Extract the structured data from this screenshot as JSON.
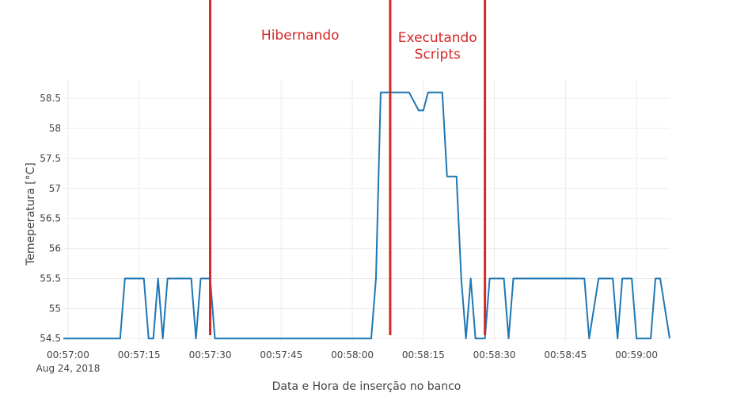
{
  "chart_data": {
    "type": "line",
    "title": "",
    "xlabel": "Data e Hora de inserção no banco",
    "ylabel": "Temeperatura [°C]",
    "xlim": [
      "00:56:59",
      "00:59:07"
    ],
    "ylim": [
      54.45,
      58.82
    ],
    "grid": true,
    "x_ticks": [
      {
        "t": "00:57:00",
        "label": "00:57:00",
        "sublabel": "Aug 24, 2018"
      },
      {
        "t": "00:57:15",
        "label": "00:57:15"
      },
      {
        "t": "00:57:30",
        "label": "00:57:30"
      },
      {
        "t": "00:57:45",
        "label": "00:57:45"
      },
      {
        "t": "00:58:00",
        "label": "00:58:00"
      },
      {
        "t": "00:58:15",
        "label": "00:58:15"
      },
      {
        "t": "00:58:30",
        "label": "00:58:30"
      },
      {
        "t": "00:58:45",
        "label": "00:58:45"
      },
      {
        "t": "00:59:00",
        "label": "00:59:00"
      }
    ],
    "y_ticks": [
      {
        "v": 54.5,
        "label": "54.5"
      },
      {
        "v": 55,
        "label": "55"
      },
      {
        "v": 55.5,
        "label": "55.5"
      },
      {
        "v": 56,
        "label": "56"
      },
      {
        "v": 56.5,
        "label": "56.5"
      },
      {
        "v": 57,
        "label": "57"
      },
      {
        "v": 57.5,
        "label": "57.5"
      },
      {
        "v": 58,
        "label": "58"
      },
      {
        "v": 58.5,
        "label": "58.5"
      }
    ],
    "series": [
      {
        "color": "#1f77b4",
        "x": [
          "00:56:59",
          "00:57:11",
          "00:57:12",
          "00:57:16",
          "00:57:17",
          "00:57:18",
          "00:57:19",
          "00:57:20",
          "00:57:21",
          "00:57:26",
          "00:57:27",
          "00:57:28",
          "00:57:30",
          "00:57:31",
          "00:58:04",
          "00:58:05",
          "00:58:06",
          "00:58:12",
          "00:58:14",
          "00:58:15",
          "00:58:16",
          "00:58:19",
          "00:58:20",
          "00:58:22",
          "00:58:23",
          "00:58:24",
          "00:58:25",
          "00:58:26",
          "00:58:28",
          "00:58:29",
          "00:58:32",
          "00:58:33",
          "00:58:34",
          "00:58:35",
          "00:58:49",
          "00:58:50",
          "00:58:52",
          "00:58:55",
          "00:58:56",
          "00:58:57",
          "00:58:59",
          "00:59:00",
          "00:59:03",
          "00:59:04",
          "00:59:05",
          "00:59:07"
        ],
        "y": [
          54.5,
          54.5,
          55.5,
          55.5,
          54.5,
          54.5,
          55.5,
          54.5,
          55.5,
          55.5,
          54.5,
          55.5,
          55.5,
          54.5,
          54.5,
          55.5,
          58.6,
          58.6,
          58.3,
          58.3,
          58.6,
          58.6,
          57.2,
          57.2,
          55.5,
          54.5,
          55.5,
          54.5,
          54.5,
          55.5,
          55.5,
          54.5,
          55.5,
          55.5,
          55.5,
          54.5,
          55.5,
          55.5,
          54.5,
          55.5,
          55.5,
          54.5,
          54.5,
          55.5,
          55.5,
          54.5
        ]
      }
    ],
    "vertical_lines": [
      {
        "t": "00:57:30",
        "color": "#d62728"
      },
      {
        "t": "00:58:08",
        "color": "#d62728"
      },
      {
        "t": "00:58:28",
        "color": "#d62728"
      }
    ],
    "annotations": [
      {
        "t": "00:57:49",
        "lines": [
          "Hibernando"
        ],
        "color": "#d62728"
      },
      {
        "t": "00:58:18",
        "lines": [
          "Executando",
          "Scripts"
        ],
        "color": "#d62728"
      }
    ]
  }
}
